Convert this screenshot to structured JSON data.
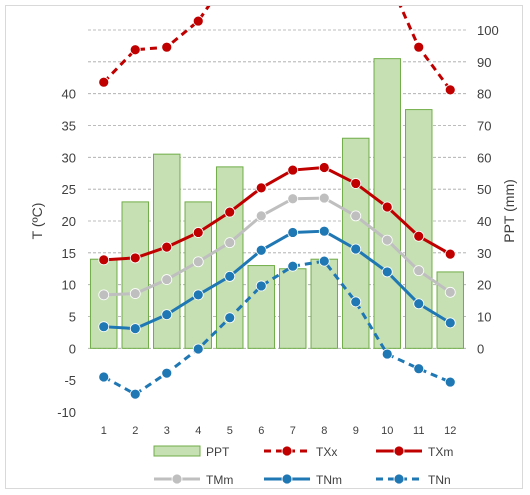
{
  "chart_data": {
    "type": "bar",
    "categories": [
      "1",
      "2",
      "3",
      "4",
      "5",
      "6",
      "7",
      "8",
      "9",
      "10",
      "11",
      "12"
    ],
    "ylabel": "T (ºC)",
    "y2label": "PPT (mm)",
    "ylim": [
      -10,
      50
    ],
    "y_ticks": [
      "-10",
      "-5",
      "0",
      "5",
      "10",
      "15",
      "20",
      "25",
      "30",
      "35",
      "40"
    ],
    "y2lim": [
      -20,
      100
    ],
    "y2_ticks": [
      "0",
      "10",
      "20",
      "30",
      "40",
      "50",
      "60",
      "70",
      "80",
      "90",
      "100"
    ],
    "grid": true,
    "legend_position": "bottom",
    "bars": {
      "name": "PPT",
      "axis": "right",
      "color": "#c6e0b4",
      "edge": "#70ad47",
      "values": [
        28,
        46,
        61,
        46,
        57,
        26,
        25,
        28,
        66,
        91,
        75,
        24
      ]
    },
    "series": [
      {
        "name": "TXx",
        "style": "dashed",
        "color": "#c00000",
        "values": [
          41.8,
          46.9,
          47.3,
          51.4,
          58.6,
          64.6,
          65.8,
          64.6,
          66.4,
          58.4,
          47.3,
          40.6
        ]
      },
      {
        "name": "TXm",
        "style": "solid",
        "color": "#c00000",
        "values": [
          13.9,
          14.2,
          15.9,
          18.2,
          21.4,
          25.2,
          28.0,
          28.4,
          25.9,
          22.2,
          17.6,
          14.8
        ]
      },
      {
        "name": "TMm",
        "style": "solid",
        "color": "#bfbfbf",
        "values": [
          8.4,
          8.6,
          10.8,
          13.6,
          16.6,
          20.8,
          23.5,
          23.6,
          20.8,
          17.0,
          12.2,
          8.8
        ]
      },
      {
        "name": "TNm",
        "style": "solid",
        "color": "#1f77b4",
        "values": [
          3.4,
          3.1,
          5.3,
          8.4,
          11.3,
          15.4,
          18.2,
          18.4,
          15.6,
          12.0,
          7.0,
          4.0
        ]
      },
      {
        "name": "TNn",
        "style": "dashed",
        "color": "#1f77b4",
        "values": [
          -4.5,
          -7.2,
          -3.9,
          -0.1,
          4.8,
          9.8,
          12.9,
          13.7,
          7.3,
          -0.9,
          -3.2,
          -5.3
        ]
      }
    ]
  }
}
